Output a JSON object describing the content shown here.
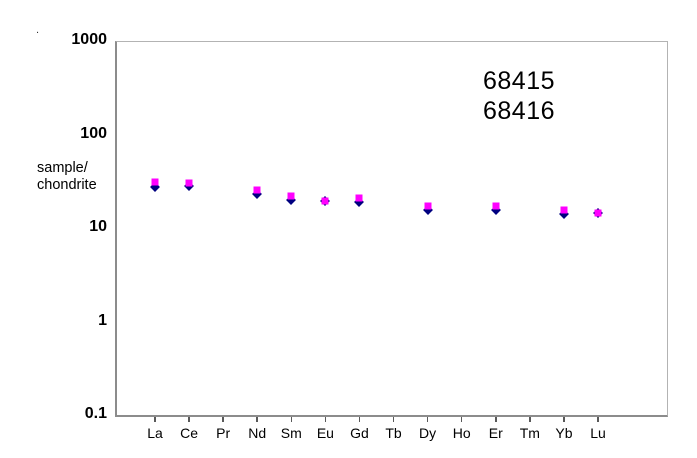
{
  "stray_dot": ".",
  "y_axis_title": {
    "line1": "sample/",
    "line2": "chondrite"
  },
  "annotation": {
    "line1": "68415",
    "line2": "68416"
  },
  "chart_data": {
    "type": "scatter",
    "title": "",
    "xlabel": "",
    "ylabel": "sample/chondrite",
    "y_scale": "log",
    "ylim": [
      0.1,
      1000
    ],
    "y_ticks": [
      "1000",
      "100",
      "10",
      "1",
      "0.1"
    ],
    "grid": false,
    "legend_position": "top-right annotation text",
    "annotations": [
      "68415",
      "68416"
    ],
    "x_categories": [
      "La",
      "Ce",
      "Pr",
      "Nd",
      "Sm",
      "Eu",
      "Gd",
      "Tb",
      "Dy",
      "Ho",
      "Er",
      "Tm",
      "Yb",
      "Lu"
    ],
    "series": [
      {
        "name": "68415",
        "marker": "diamond",
        "color": "#000080",
        "values": [
          28,
          29,
          null,
          23.5,
          20.5,
          20,
          19.5,
          null,
          16,
          null,
          15.8,
          null,
          14.3,
          14.8
        ]
      },
      {
        "name": "68416",
        "marker": "square",
        "color": "#ff00ff",
        "values": [
          32,
          31,
          null,
          26,
          22.5,
          20,
          21.5,
          null,
          17.8,
          null,
          17.8,
          null,
          16,
          14.8
        ]
      }
    ]
  }
}
